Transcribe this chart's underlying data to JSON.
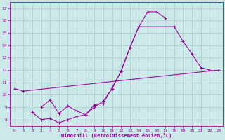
{
  "xlabel": "Windchill (Refroidissement éolien,°C)",
  "background_color": "#cce9e9",
  "grid_color": "#aacccc",
  "line_color": "#990099",
  "xlim": [
    -0.5,
    23.5
  ],
  "ylim": [
    7.5,
    17.5
  ],
  "xticks": [
    0,
    1,
    2,
    3,
    4,
    5,
    6,
    7,
    8,
    9,
    10,
    11,
    12,
    13,
    14,
    15,
    16,
    17,
    18,
    19,
    20,
    21,
    22,
    23
  ],
  "yticks": [
    8,
    9,
    10,
    11,
    12,
    13,
    14,
    15,
    16,
    17
  ],
  "series1_x": [
    0,
    1,
    23
  ],
  "series1_y": [
    10.5,
    10.3,
    12.0
  ],
  "series2_x": [
    2,
    3,
    4,
    5,
    6,
    7,
    8,
    9,
    10,
    11,
    12,
    13,
    14,
    15,
    16,
    17
  ],
  "series2_y": [
    8.6,
    8.0,
    8.1,
    7.75,
    8.0,
    8.25,
    8.4,
    9.0,
    9.5,
    10.5,
    11.9,
    13.8,
    15.5,
    16.7,
    16.7,
    16.2
  ],
  "series3_x": [
    3,
    4,
    5,
    6,
    7,
    8,
    9,
    10,
    12,
    13,
    14,
    18,
    19,
    20,
    21,
    22
  ],
  "series3_y": [
    9.0,
    9.6,
    8.5,
    9.1,
    8.7,
    8.4,
    9.2,
    9.3,
    11.9,
    13.8,
    15.5,
    15.5,
    14.3,
    13.3,
    12.2,
    12.0
  ],
  "tick_fontsize": 4.5,
  "xlabel_fontsize": 5.0
}
